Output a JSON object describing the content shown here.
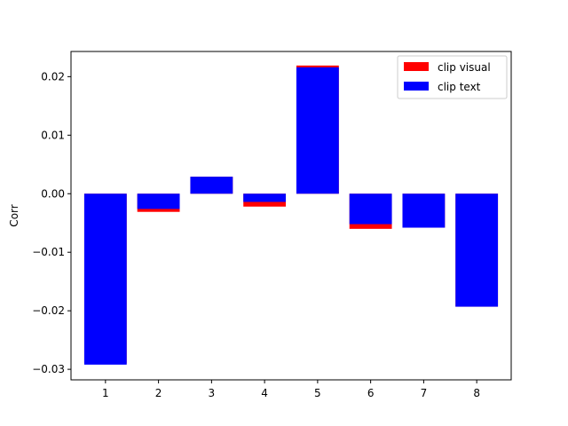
{
  "chart_data": {
    "type": "bar",
    "categories": [
      "1",
      "2",
      "3",
      "4",
      "5",
      "6",
      "7",
      "8"
    ],
    "series": [
      {
        "name": "clip visual",
        "color": "#ff0000",
        "values": [
          -0.029,
          -0.0031,
          0.0029,
          -0.0022,
          0.0219,
          -0.006,
          -0.0058,
          -0.0193
        ]
      },
      {
        "name": "clip text",
        "color": "#0000ff",
        "values": [
          -0.0292,
          -0.0026,
          0.0029,
          -0.0014,
          0.0216,
          -0.0052,
          -0.0058,
          -0.0193
        ]
      }
    ],
    "title": "",
    "xlabel": "",
    "ylabel": "Corr",
    "ylim": [
      -0.0318,
      0.0243
    ],
    "yticks": [
      -0.03,
      -0.02,
      -0.01,
      0.0,
      0.01,
      0.02
    ],
    "ytick_labels": [
      "−0.03",
      "−0.02",
      "−0.01",
      "0.00",
      "0.01",
      "0.02"
    ],
    "grid": false,
    "legend_position": "top-right"
  }
}
